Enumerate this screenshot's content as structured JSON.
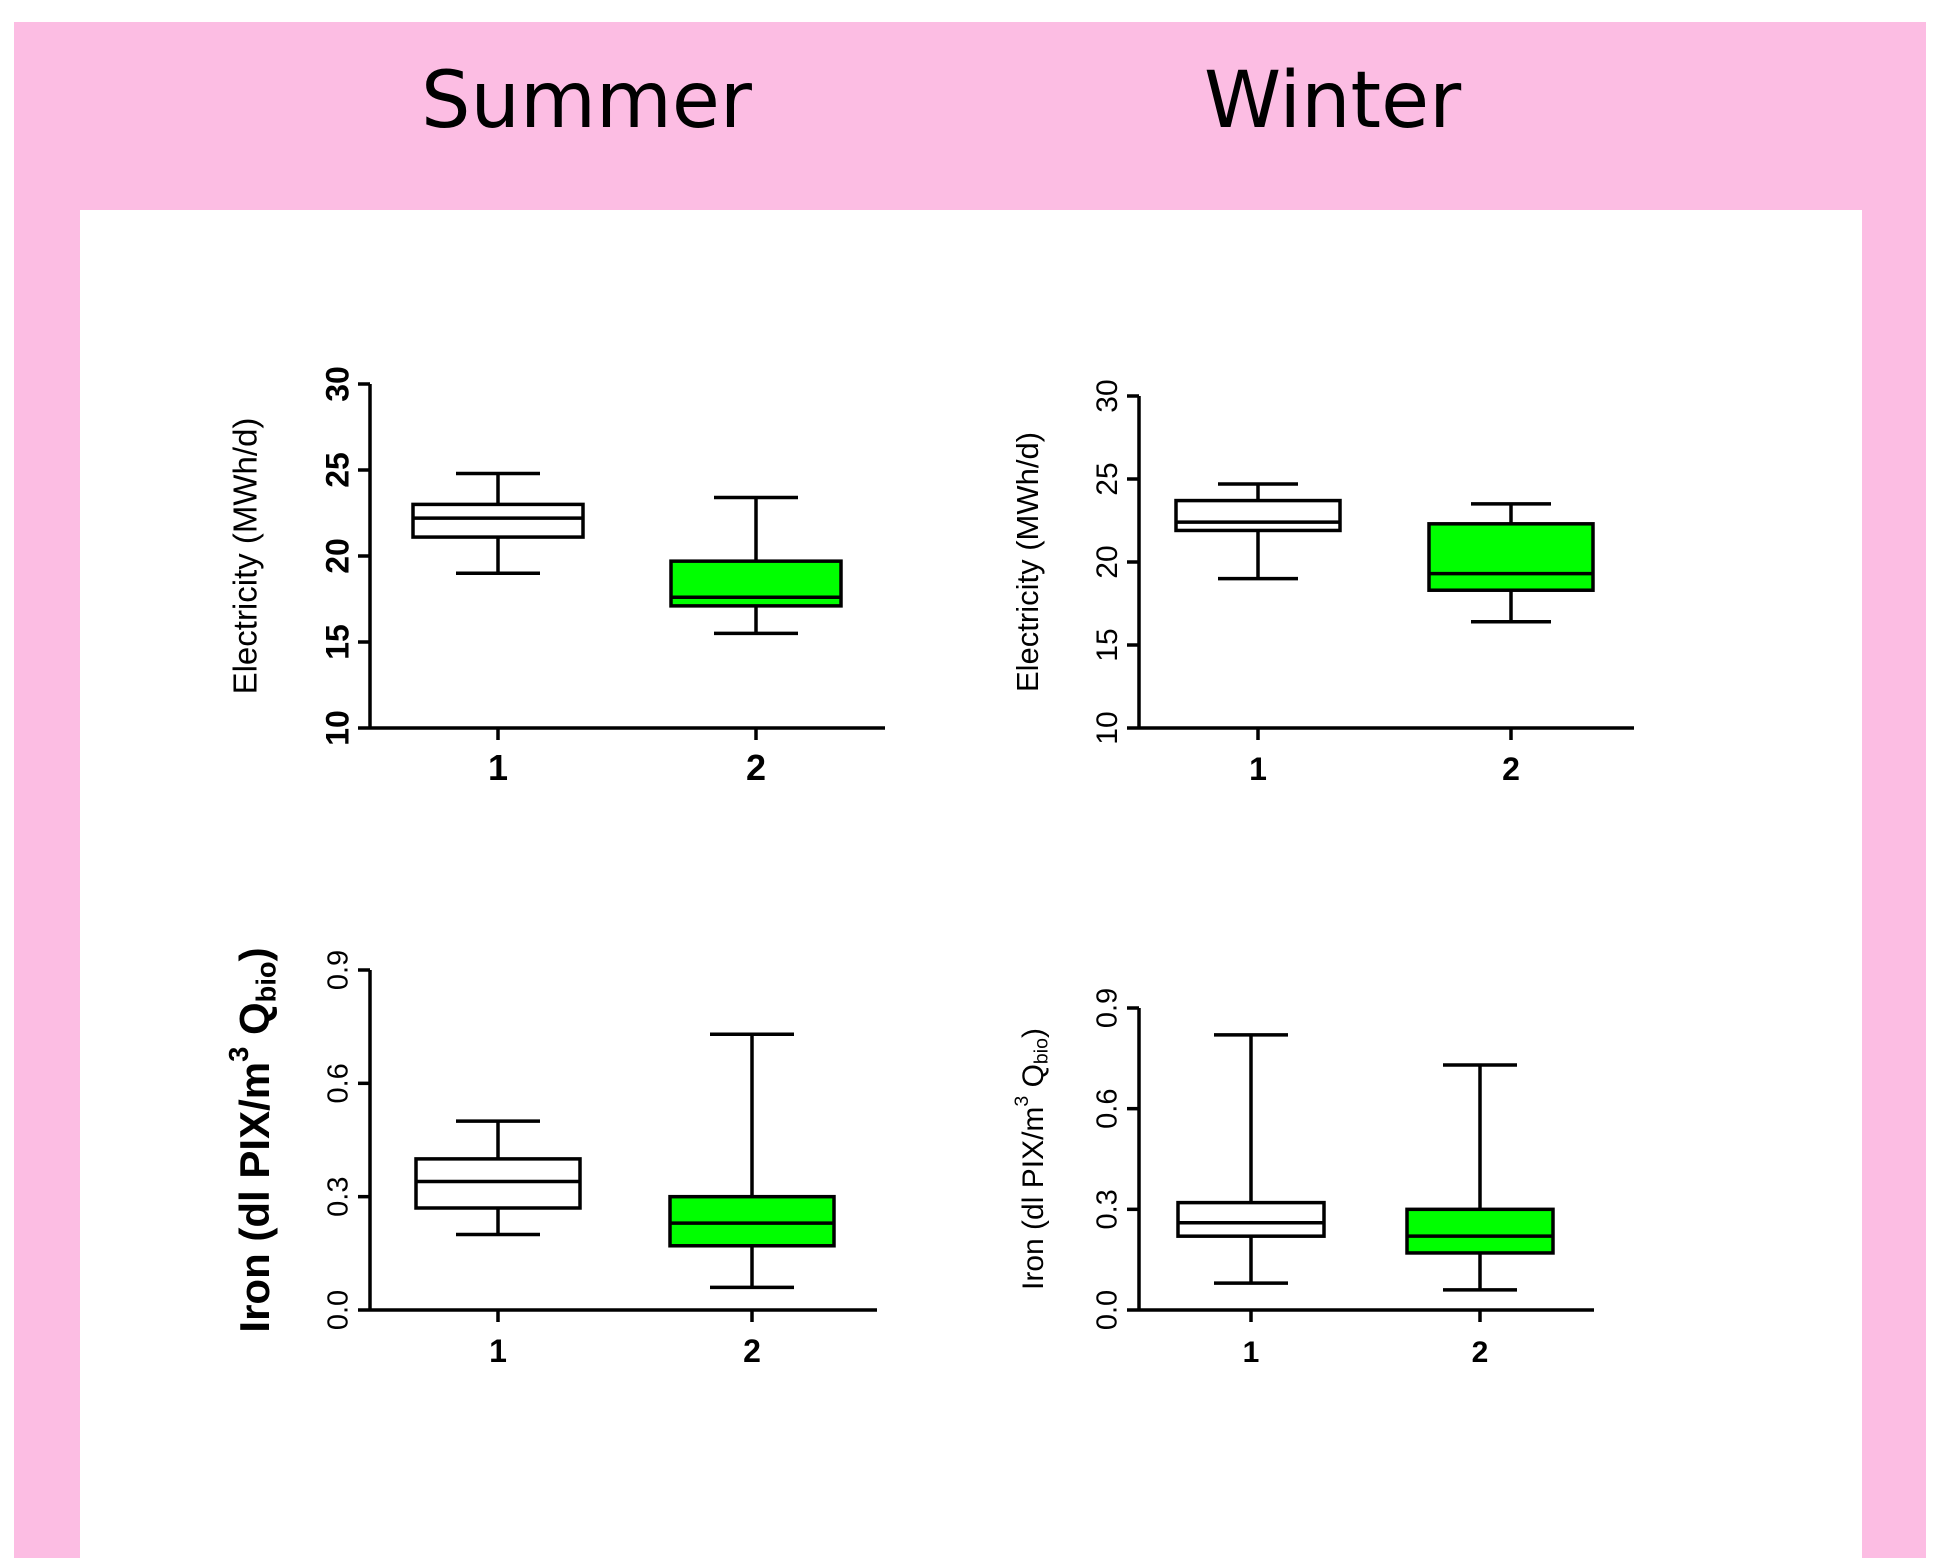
{
  "colors": {
    "frame": "#fcbde3",
    "panel": "#ffffff",
    "box_group_1": "#ffffff",
    "box_group_2": "#00ff00",
    "stroke": "#000000"
  },
  "titles": {
    "summer": "Summer",
    "winter": "Winter"
  },
  "chart_data": [
    {
      "id": "summer-electricity",
      "type": "box",
      "ylabel": "Electricity (MWh/d)",
      "ylim": [
        10,
        30
      ],
      "yticks": [
        "10",
        "15",
        "20",
        "25",
        "30"
      ],
      "categories": [
        "1",
        "2"
      ],
      "bold_ticks": true,
      "bold_label": false,
      "boxes": [
        {
          "category": "1",
          "min": 19.0,
          "q1": 21.1,
          "median": 22.2,
          "q3": 23.0,
          "max": 24.8
        },
        {
          "category": "2",
          "min": 15.5,
          "q1": 17.1,
          "median": 17.6,
          "q3": 19.7,
          "max": 23.4
        }
      ]
    },
    {
      "id": "winter-electricity",
      "type": "box",
      "ylabel": "Electricity (MWh/d)",
      "ylim": [
        10,
        30
      ],
      "yticks": [
        "10",
        "15",
        "20",
        "25",
        "30"
      ],
      "categories": [
        "1",
        "2"
      ],
      "bold_ticks": false,
      "bold_label": false,
      "boxes": [
        {
          "category": "1",
          "min": 19.0,
          "q1": 21.9,
          "median": 22.4,
          "q3": 23.7,
          "max": 24.7
        },
        {
          "category": "2",
          "min": 16.4,
          "q1": 18.3,
          "median": 19.3,
          "q3": 22.3,
          "max": 23.5
        }
      ]
    },
    {
      "id": "summer-iron",
      "type": "box",
      "ylabel": "Iron (dl PIX/m",
      "ylabel_sup": "3",
      "ylabel_sub_base": "Q",
      "ylabel_sub": "bio",
      "ylabel_close": ")",
      "ylim": [
        0.0,
        0.9
      ],
      "yticks": [
        "0.0",
        "0.3",
        "0.6",
        "0.9"
      ],
      "categories": [
        "1",
        "2"
      ],
      "bold_ticks": false,
      "bold_label": true,
      "boxes": [
        {
          "category": "1",
          "min": 0.2,
          "q1": 0.27,
          "median": 0.34,
          "q3": 0.4,
          "max": 0.5
        },
        {
          "category": "2",
          "min": 0.06,
          "q1": 0.17,
          "median": 0.23,
          "q3": 0.3,
          "max": 0.73
        }
      ]
    },
    {
      "id": "winter-iron",
      "type": "box",
      "ylabel": "Iron (dl PIX/m",
      "ylabel_sup": "3",
      "ylabel_sub_base": "Q",
      "ylabel_sub": "bio",
      "ylabel_close": ")",
      "ylim": [
        0.0,
        0.9
      ],
      "yticks": [
        "0.0",
        "0.3",
        "0.6",
        "0.9"
      ],
      "categories": [
        "1",
        "2"
      ],
      "bold_ticks": false,
      "bold_label": false,
      "boxes": [
        {
          "category": "1",
          "min": 0.08,
          "q1": 0.22,
          "median": 0.26,
          "q3": 0.32,
          "max": 0.82
        },
        {
          "category": "2",
          "min": 0.06,
          "q1": 0.17,
          "median": 0.22,
          "q3": 0.3,
          "max": 0.73
        }
      ]
    }
  ]
}
